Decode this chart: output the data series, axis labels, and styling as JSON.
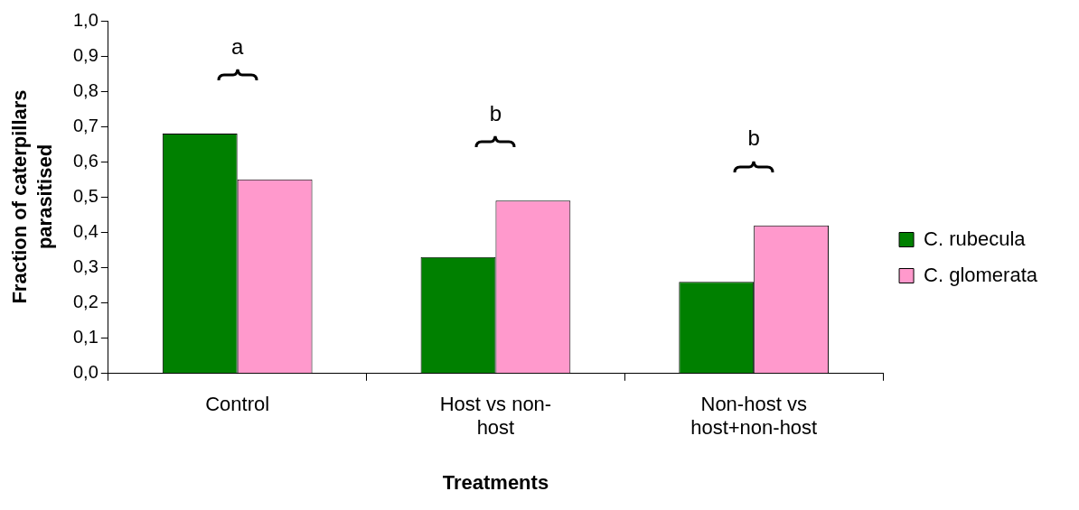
{
  "chart_data": {
    "type": "bar",
    "xlabel": "Treatments",
    "ylabel": "Fraction of caterpillars parasitised",
    "categories": [
      "Control",
      "Host vs non-host",
      "Non-host vs host+non-host"
    ],
    "series": [
      {
        "name": "C. rubecula",
        "color": "#008000",
        "values": [
          0.68,
          0.33,
          0.26
        ]
      },
      {
        "name": "C. glomerata",
        "color": "#ff99cc",
        "values": [
          0.55,
          0.49,
          0.42
        ]
      }
    ],
    "ylim": [
      0,
      1
    ],
    "yticks": [
      {
        "value": 0,
        "label": "0,0"
      },
      {
        "value": 0.1,
        "label": "0,1"
      },
      {
        "value": 0.2,
        "label": "0,2"
      },
      {
        "value": 0.3,
        "label": "0,3"
      },
      {
        "value": 0.4,
        "label": "0,4"
      },
      {
        "value": 0.5,
        "label": "0,5"
      },
      {
        "value": 0.6,
        "label": "0,6"
      },
      {
        "value": 0.7,
        "label": "0,7"
      },
      {
        "value": 0.8,
        "label": "0,8"
      },
      {
        "value": 0.9,
        "label": "0,9"
      },
      {
        "value": 1,
        "label": "1,0"
      }
    ],
    "annotations": [
      "a",
      "b",
      "b"
    ],
    "legend": "right"
  }
}
